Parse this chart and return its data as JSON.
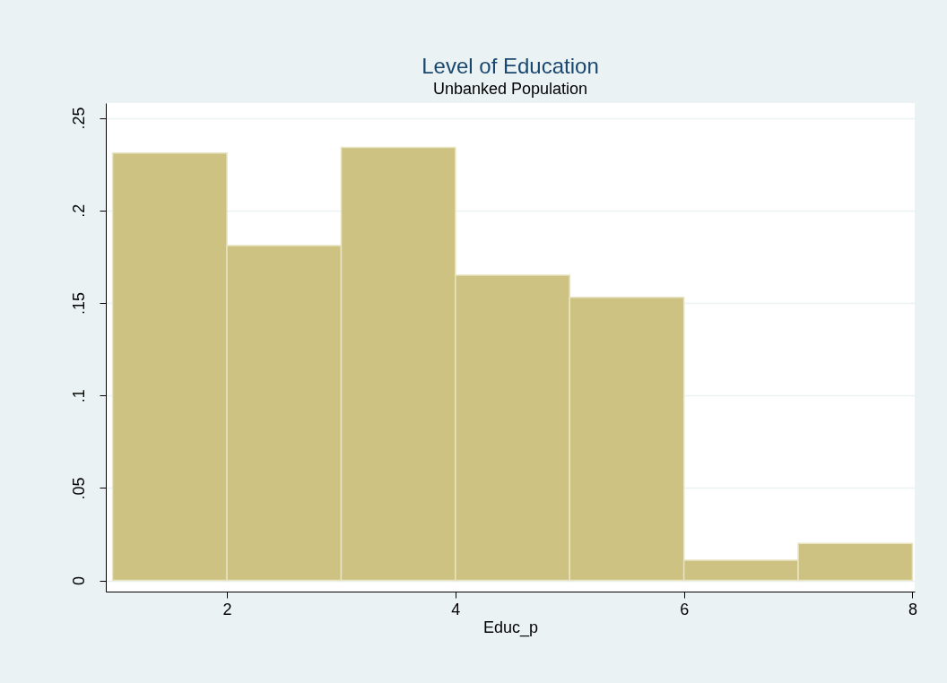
{
  "chart_data": {
    "type": "histogram",
    "title": "Level of Education",
    "subtitle": "Unbanked Population",
    "xlabel": "Educ_p",
    "bins": [
      1,
      2,
      3,
      4,
      5,
      6,
      7,
      8
    ],
    "values": [
      0.231,
      0.181,
      0.234,
      0.165,
      0.153,
      0.011,
      0.02
    ],
    "color": "#cdc282",
    "xlim": [
      0.94,
      8.02
    ],
    "xticks": [
      2,
      4,
      6,
      8
    ],
    "ylim": [
      -0.006,
      0.258
    ],
    "yticks": [
      {
        "value": 0,
        "label": "0"
      },
      {
        "value": 0.05,
        "label": ".05"
      },
      {
        "value": 0.1,
        "label": ".1"
      },
      {
        "value": 0.15,
        "label": ".15"
      },
      {
        "value": 0.2,
        "label": ".2"
      },
      {
        "value": 0.25,
        "label": ".25"
      }
    ],
    "grid": "y"
  }
}
